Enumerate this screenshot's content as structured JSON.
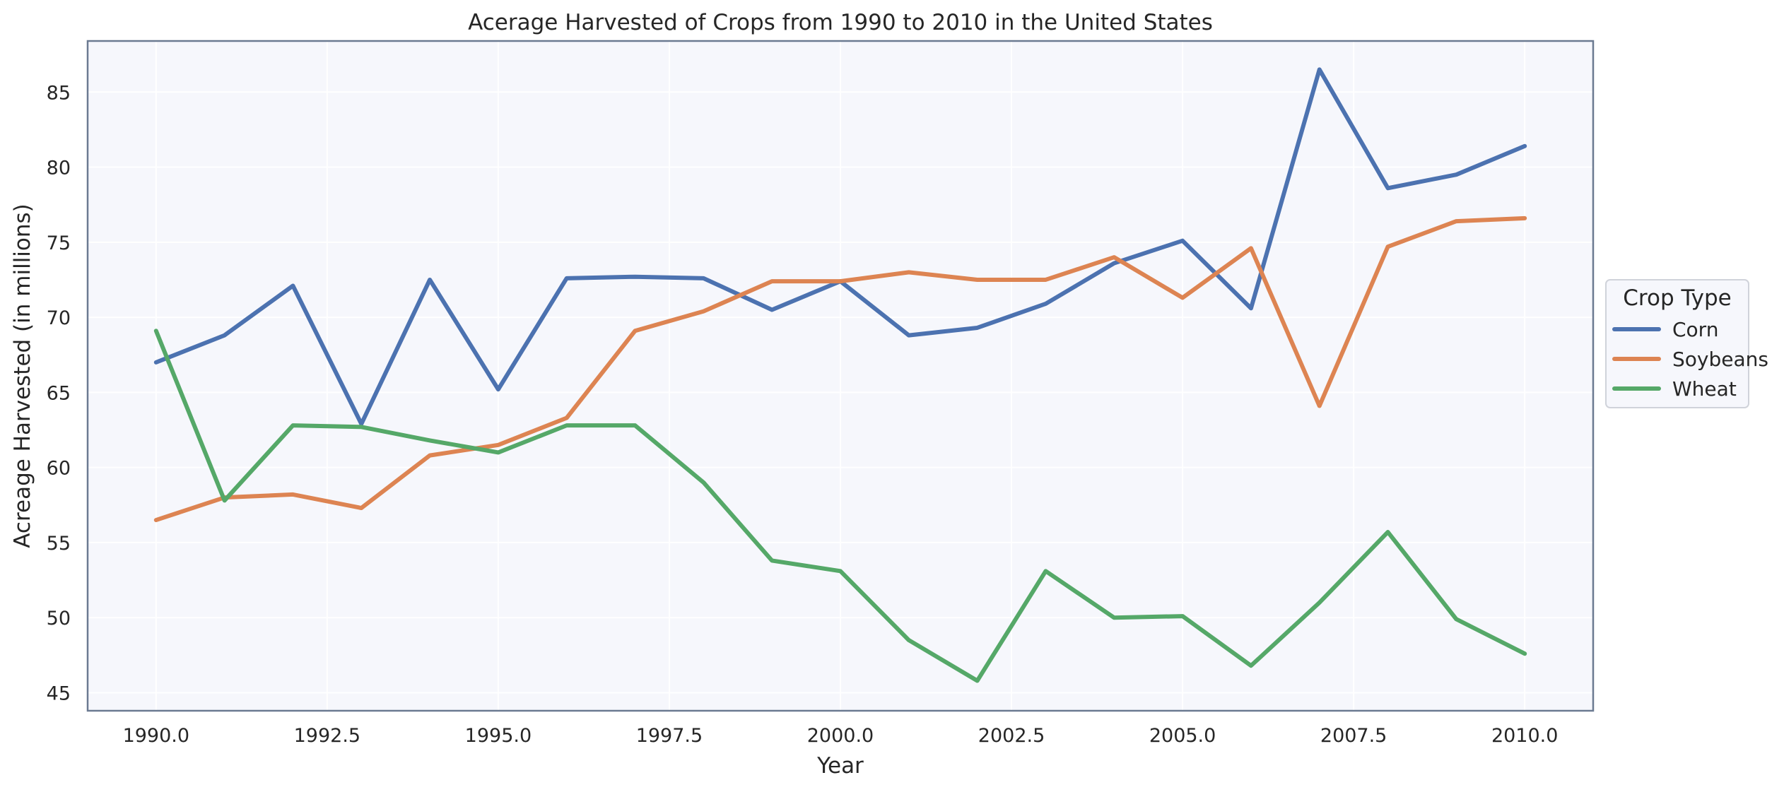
{
  "chart_data": {
    "type": "line",
    "title": "Acerage Harvested of Crops from 1990 to 2010 in the United States",
    "xlabel": "Year",
    "ylabel": "Acreage Harvested (in millions)",
    "xlim": [
      1989,
      2011
    ],
    "ylim": [
      43.8,
      88.4
    ],
    "xticks": [
      1990.0,
      1992.5,
      1995.0,
      1997.5,
      2000.0,
      2002.5,
      2005.0,
      2007.5,
      2010.0
    ],
    "xtick_labels": [
      "1990.0",
      "1992.5",
      "1995.0",
      "1997.5",
      "2000.0",
      "2002.5",
      "2005.0",
      "2007.5",
      "2010.0"
    ],
    "yticks": [
      45,
      50,
      55,
      60,
      65,
      70,
      75,
      80,
      85
    ],
    "ytick_labels": [
      "45",
      "50",
      "55",
      "60",
      "65",
      "70",
      "75",
      "80",
      "85"
    ],
    "grid": true,
    "legend": {
      "title": "Crop Type",
      "placement": "outside-right"
    },
    "x": [
      1990,
      1991,
      1992,
      1993,
      1994,
      1995,
      1996,
      1997,
      1998,
      1999,
      2000,
      2001,
      2002,
      2003,
      2004,
      2005,
      2006,
      2007,
      2008,
      2009,
      2010
    ],
    "series": [
      {
        "name": "Corn",
        "color": "#4c72b0",
        "values": [
          67.0,
          68.8,
          72.1,
          62.9,
          72.5,
          65.2,
          72.6,
          72.7,
          72.6,
          70.5,
          72.4,
          68.8,
          69.3,
          70.9,
          73.6,
          75.1,
          70.6,
          86.5,
          78.6,
          79.5,
          81.4
        ]
      },
      {
        "name": "Soybeans",
        "color": "#dd8452",
        "values": [
          56.5,
          58.0,
          58.2,
          57.3,
          60.8,
          61.5,
          63.3,
          69.1,
          70.4,
          72.4,
          72.4,
          73.0,
          72.5,
          72.5,
          74.0,
          71.3,
          74.6,
          64.1,
          74.7,
          76.4,
          76.6
        ]
      },
      {
        "name": "Wheat",
        "color": "#55a868",
        "values": [
          69.1,
          57.8,
          62.8,
          62.7,
          61.8,
          61.0,
          62.8,
          62.8,
          59.0,
          53.8,
          53.1,
          48.5,
          45.8,
          53.1,
          50.0,
          50.1,
          46.8,
          51.0,
          55.7,
          49.9,
          47.6
        ]
      }
    ]
  }
}
